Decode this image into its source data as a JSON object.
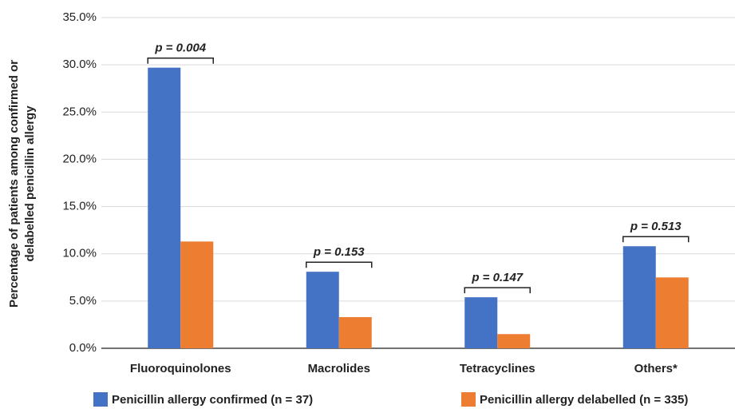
{
  "chart_data": {
    "type": "bar",
    "ylabel": [
      "Percentage of patients among confirmed or",
      "delabelled penicillin allergy"
    ],
    "categories": [
      "Fluoroquinolones",
      "Macrolides",
      "Tetracyclines",
      "Others*"
    ],
    "series": [
      {
        "name": "Penicillin allergy confirmed (n = 37)",
        "color": "#4472c4",
        "values": [
          29.7,
          8.1,
          5.4,
          10.8
        ]
      },
      {
        "name": "Penicillin allergy delabelled (n = 335)",
        "color": "#ed7d31",
        "values": [
          11.3,
          3.3,
          1.5,
          7.5
        ]
      }
    ],
    "annotations": [
      "p = 0.004",
      "p = 0.153",
      "p = 0.147",
      "p = 0.513"
    ],
    "ylim": [
      0,
      35
    ],
    "yticks": [
      {
        "value": 0,
        "label": "0.0%"
      },
      {
        "value": 5,
        "label": "5.0%"
      },
      {
        "value": 10,
        "label": "10.0%"
      },
      {
        "value": 15,
        "label": "15.0%"
      },
      {
        "value": 20,
        "label": "20.0%"
      },
      {
        "value": 25,
        "label": "25.0%"
      },
      {
        "value": 30,
        "label": "30.0%"
      },
      {
        "value": 35,
        "label": "35.0%"
      }
    ],
    "grid": true,
    "legend": "bottom"
  }
}
